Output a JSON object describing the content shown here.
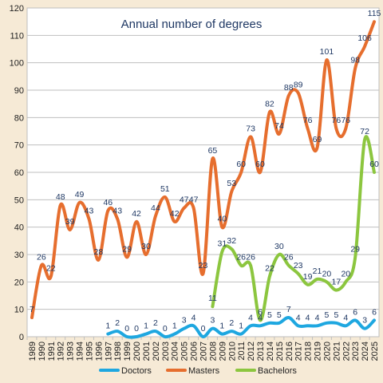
{
  "chart_data": {
    "type": "line",
    "title": "Annual number of degrees",
    "xlabel": "",
    "ylabel": "",
    "ylim": [
      0,
      120
    ],
    "yticks": [
      0,
      10,
      20,
      30,
      40,
      50,
      60,
      70,
      80,
      90,
      100,
      110,
      120
    ],
    "grid": true,
    "legend_position": "bottom",
    "categories": [
      "1989",
      "1990",
      "1991",
      "1992",
      "1993",
      "1994",
      "1995",
      "1996",
      "1997",
      "1998",
      "1999",
      "2000",
      "2001",
      "2002",
      "2003",
      "2004",
      "2005",
      "2006",
      "2007",
      "2008",
      "2009",
      "2010",
      "2011",
      "2012",
      "2013",
      "2014",
      "2015",
      "2016",
      "2017",
      "2018",
      "2019",
      "2020",
      "2021",
      "2022",
      "2023",
      "2024",
      "2025"
    ],
    "series": [
      {
        "name": "Doctors",
        "color": "#1ea7e0",
        "values": [
          null,
          null,
          null,
          null,
          null,
          null,
          null,
          null,
          1,
          2,
          0,
          0,
          1,
          2,
          0,
          1,
          3,
          4,
          0,
          3,
          1,
          2,
          1,
          4,
          4,
          5,
          5,
          7,
          4,
          4,
          4,
          5,
          5,
          4,
          6,
          3,
          6
        ],
        "labels": [
          null,
          null,
          null,
          null,
          null,
          null,
          null,
          null,
          "1",
          "2",
          "0",
          "0",
          "1",
          "2",
          "0",
          "1",
          "3",
          "4",
          "0",
          "3",
          "1",
          "2",
          "1",
          "4",
          "4",
          "5",
          "5",
          "7",
          "4",
          "4",
          "4",
          "5",
          "5",
          "4",
          "6",
          "3",
          "6"
        ]
      },
      {
        "name": "Masters",
        "color": "#e66e2e",
        "values": [
          7,
          26,
          22,
          48,
          39,
          49,
          43,
          28,
          46,
          43,
          29,
          42,
          30,
          44,
          51,
          42,
          47,
          47,
          23,
          65,
          40,
          53,
          60,
          73,
          60,
          82,
          74,
          88,
          89,
          76,
          69,
          101,
          76,
          76,
          98,
          106,
          115
        ],
        "labels": [
          "7",
          "26",
          "22",
          "48",
          "39",
          "49",
          "43",
          "28",
          "46",
          "43",
          "29",
          "42",
          "30",
          "44",
          "51",
          "42",
          "47",
          "47",
          "23",
          "65",
          "40",
          "53",
          "60",
          "73",
          "60",
          "82",
          "74",
          "88",
          "89",
          "76",
          "69",
          "101",
          "76",
          "76",
          "98",
          "106",
          "115"
        ]
      },
      {
        "name": "Bachelors",
        "color": "#8cc63f",
        "values": [
          null,
          null,
          null,
          null,
          null,
          null,
          null,
          null,
          null,
          null,
          null,
          null,
          null,
          null,
          null,
          null,
          null,
          null,
          null,
          11,
          31,
          32,
          26,
          26,
          6,
          22,
          30,
          26,
          23,
          19,
          21,
          20,
          17,
          20,
          29,
          72,
          60
        ],
        "labels": [
          null,
          null,
          null,
          null,
          null,
          null,
          null,
          null,
          null,
          null,
          null,
          null,
          null,
          null,
          null,
          null,
          null,
          null,
          null,
          "11",
          "31",
          "32",
          "26",
          "26",
          "6",
          "22",
          "30",
          "26",
          "23",
          "19",
          "21",
          "20",
          "17",
          "20",
          "29",
          "72",
          "60"
        ]
      }
    ]
  }
}
